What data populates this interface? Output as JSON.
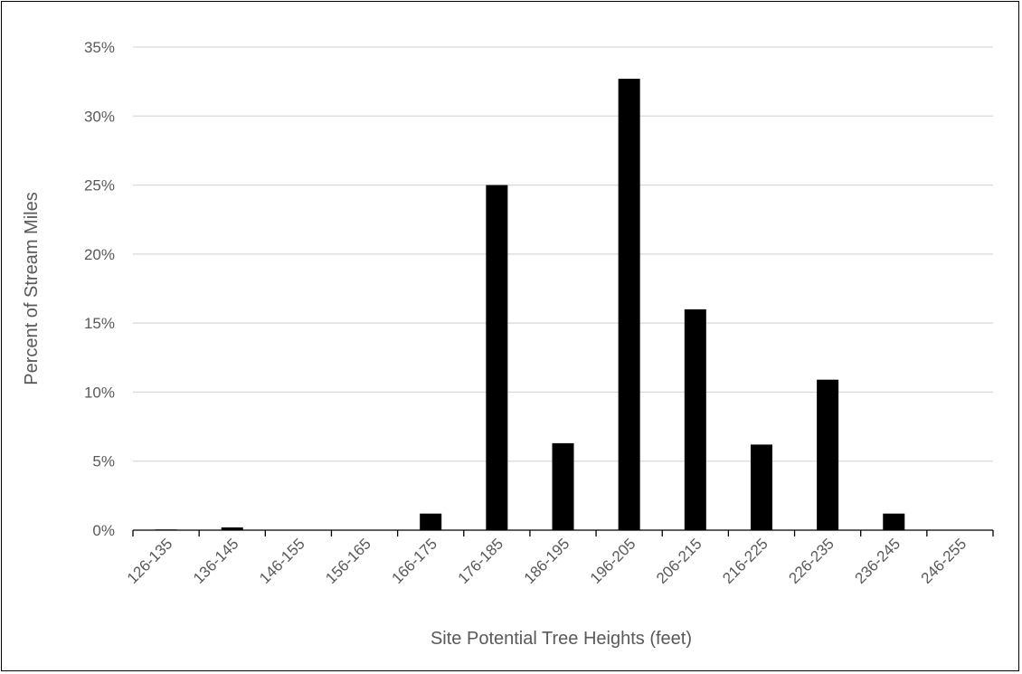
{
  "chart_data": {
    "type": "bar",
    "title": "",
    "xlabel": "Site Potential Tree Heights (feet)",
    "ylabel": "Percent of Stream Miles",
    "categories": [
      "126-135",
      "136-145",
      "146-155",
      "156-165",
      "166-175",
      "176-185",
      "186-195",
      "196-205",
      "206-215",
      "216-225",
      "226-235",
      "236-245",
      "246-255"
    ],
    "values": [
      0.05,
      0.2,
      0,
      0,
      1.2,
      25.0,
      6.3,
      32.7,
      16.0,
      6.2,
      10.9,
      1.2,
      0
    ],
    "ylim": [
      0,
      35
    ],
    "yticks": [
      0,
      5,
      10,
      15,
      20,
      25,
      30,
      35
    ],
    "ytick_labels": [
      "0%",
      "5%",
      "10%",
      "15%",
      "20%",
      "25%",
      "30%",
      "35%"
    ],
    "grid": true,
    "bar_color": "#000000",
    "grid_color": "#d9d9d9",
    "axis_color": "#000000"
  }
}
